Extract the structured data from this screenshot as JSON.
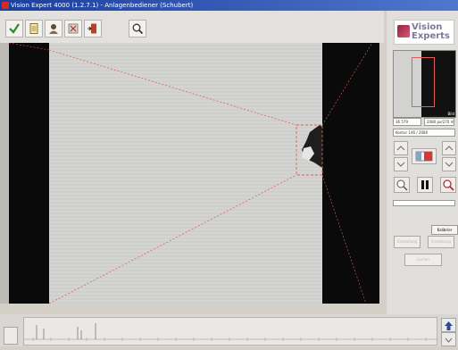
{
  "window": {
    "title": "Vision Expert 4000 (1.2.7.1) - Anlagenbediener (Schubert)"
  },
  "toolbar": {
    "icons": [
      "check-icon",
      "document-icon",
      "person-icon",
      "settings-icon",
      "exit-door-icon",
      "zoom-icon"
    ]
  },
  "brand": {
    "line1": "Vision",
    "line2": "Experts"
  },
  "preview": {
    "label": "Bild"
  },
  "info": {
    "field1": "36 579",
    "field2": "2080 px/270 ms",
    "field3": "Kontur 146 / 2080"
  },
  "controls": {
    "name_label": "Kalibrier",
    "disabled_left": "Einstellung",
    "disabled_right": "Einstellung",
    "disabled_center": "Lernen"
  },
  "colors": {
    "accent": "#e0605a",
    "titlebar": "#1c3f9c",
    "panel_black": "#0a0a0a"
  }
}
